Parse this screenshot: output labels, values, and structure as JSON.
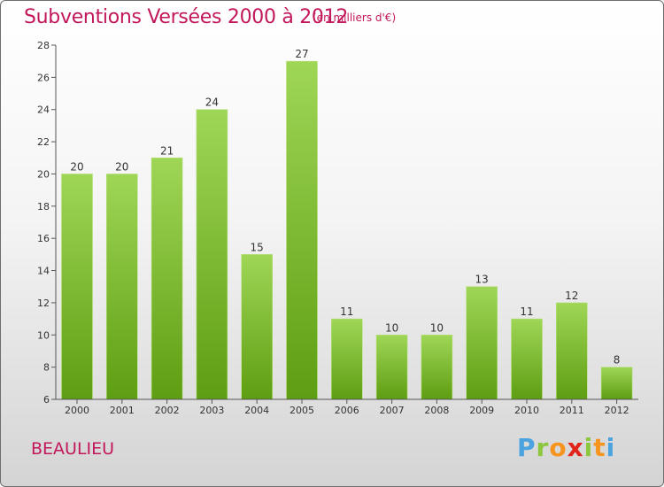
{
  "title": "Subventions Versées 2000 à 2012",
  "unit": "(en milliers d'€)",
  "commune": "BEAULIEU",
  "logo": {
    "letters": [
      "P",
      "r",
      "o",
      "x",
      "i",
      "t",
      "i"
    ],
    "colors": [
      "#4aa3df",
      "#8dc63f",
      "#f7941d",
      "#e2231a",
      "#8dc63f",
      "#f7941d",
      "#4aa3df"
    ]
  },
  "colors": {
    "bar_top": "#9fd656",
    "bar_bottom": "#5e9e12",
    "title": "#c2185b",
    "axis": "#555555"
  },
  "chart_data": {
    "type": "bar",
    "title": "Subventions Versées 2000 à 2012",
    "subtitle": "(en milliers d'€)",
    "xlabel": "",
    "ylabel": "",
    "categories": [
      "2000",
      "2001",
      "2002",
      "2003",
      "2004",
      "2005",
      "2006",
      "2007",
      "2008",
      "2009",
      "2010",
      "2011",
      "2012"
    ],
    "values": [
      20,
      20,
      21,
      24,
      15,
      27,
      11,
      10,
      10,
      13,
      11,
      12,
      8
    ],
    "ylim": [
      6,
      28
    ],
    "yticks": [
      6,
      8,
      10,
      12,
      14,
      16,
      18,
      20,
      22,
      24,
      26,
      28
    ],
    "grid": false,
    "legend": "none"
  }
}
